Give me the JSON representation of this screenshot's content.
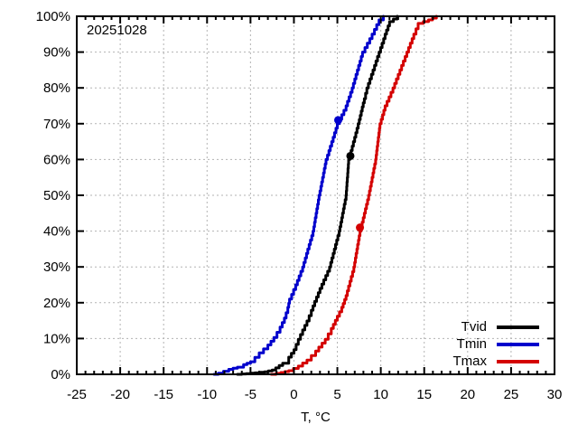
{
  "date_label": "20251028",
  "colors": {
    "background": "#ffffff",
    "axis": "#000000",
    "grid": "#b3b3b3",
    "tvid": "#000000",
    "tmin": "#0000cc",
    "tmax": "#d40000"
  },
  "legend": {
    "position": "bottom-right",
    "entries": [
      {
        "label": "Tvid",
        "color": "#000000"
      },
      {
        "label": "Tmin",
        "color": "#0000cc"
      },
      {
        "label": "Tmax",
        "color": "#d40000"
      }
    ]
  },
  "chart_data": {
    "type": "line",
    "title": "20251028",
    "xlabel": "T, °C",
    "ylabel": "",
    "xlim": [
      -25,
      30
    ],
    "ylim": [
      0,
      100
    ],
    "x_major_step": 5,
    "x_minor_step": 1,
    "y_major_step": 10,
    "x_ticks": [
      -25,
      -20,
      -15,
      -10,
      -5,
      0,
      5,
      10,
      15,
      20,
      25,
      30
    ],
    "y_ticks": [
      0,
      10,
      20,
      30,
      40,
      50,
      60,
      70,
      80,
      90,
      100
    ],
    "y_tick_suffix": "%",
    "grid": true,
    "grid_style": "dashed",
    "legend_position": "bottom-right",
    "curve_style": "empirical-cdf-staircase",
    "series": [
      {
        "name": "Tvid",
        "color": "#000000",
        "marker_point": {
          "x": 6.5,
          "y": 61
        },
        "points": [
          [
            -6.5,
            0
          ],
          [
            -4.5,
            0.4
          ],
          [
            -3.4,
            0.7
          ],
          [
            -2.5,
            1.2
          ],
          [
            -2.1,
            1.8
          ],
          [
            -1.3,
            3.1
          ],
          [
            -0.6,
            4.8
          ],
          [
            0,
            6.9
          ],
          [
            0.5,
            9.8
          ],
          [
            1,
            12.4
          ],
          [
            1.5,
            14.9
          ],
          [
            2,
            17.9
          ],
          [
            2.4,
            20.4
          ],
          [
            3,
            24
          ],
          [
            4.1,
            30
          ],
          [
            5.2,
            40
          ],
          [
            6,
            50
          ],
          [
            6.3,
            60
          ],
          [
            7.4,
            70
          ],
          [
            8.1,
            77
          ],
          [
            8.4,
            80
          ],
          [
            9.8,
            90
          ],
          [
            10.5,
            95
          ],
          [
            11,
            98.5
          ],
          [
            11.9,
            100
          ]
        ]
      },
      {
        "name": "Tmin",
        "color": "#0000cc",
        "marker_point": {
          "x": 5.1,
          "y": 71
        },
        "points": [
          [
            -9.2,
            0
          ],
          [
            -8.7,
            0.3
          ],
          [
            -7.5,
            1.4
          ],
          [
            -6.5,
            2
          ],
          [
            -5.8,
            2.7
          ],
          [
            -5,
            3.5
          ],
          [
            -4,
            6
          ],
          [
            -3,
            8.2
          ],
          [
            -2.3,
            10.3
          ],
          [
            -1.6,
            13.2
          ],
          [
            -1.1,
            15.7
          ],
          [
            -0.7,
            18.7
          ],
          [
            -0.5,
            21
          ],
          [
            0.2,
            25
          ],
          [
            1,
            30
          ],
          [
            2.2,
            40
          ],
          [
            2.9,
            50
          ],
          [
            3.7,
            60
          ],
          [
            5,
            70
          ],
          [
            6,
            75
          ],
          [
            6.7,
            80
          ],
          [
            7.9,
            90
          ],
          [
            9,
            95
          ],
          [
            9.8,
            99
          ],
          [
            10.3,
            100
          ]
        ]
      },
      {
        "name": "Tmax",
        "color": "#d40000",
        "marker_point": {
          "x": 7.6,
          "y": 41
        },
        "points": [
          [
            -2.6,
            0
          ],
          [
            -1.5,
            0.5
          ],
          [
            -0.6,
            1
          ],
          [
            0.5,
            2.3
          ],
          [
            1.5,
            4
          ],
          [
            2.5,
            6.5
          ],
          [
            3.6,
            9.8
          ],
          [
            4.3,
            12.8
          ],
          [
            5,
            16.2
          ],
          [
            5.5,
            18.7
          ],
          [
            6,
            22
          ],
          [
            6.9,
            30
          ],
          [
            7.6,
            40
          ],
          [
            8.6,
            50
          ],
          [
            9.4,
            60
          ],
          [
            9.9,
            70
          ],
          [
            10.5,
            75
          ],
          [
            11.4,
            80
          ],
          [
            13,
            90
          ],
          [
            13.8,
            95
          ],
          [
            14.3,
            98
          ],
          [
            15.5,
            99
          ],
          [
            16.4,
            100
          ]
        ]
      }
    ]
  }
}
